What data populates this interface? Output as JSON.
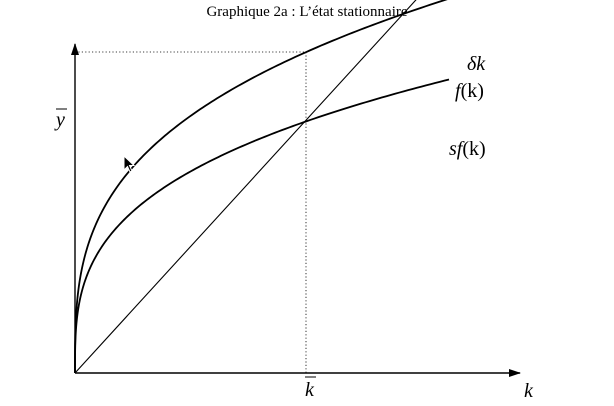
{
  "title": "Graphique 2a : L’état stationnaire",
  "chart_data": {
    "type": "line",
    "title": "Graphique 2a : L’état stationnaire",
    "xlabel": "k",
    "ylabel": "",
    "xlim": [
      0,
      10
    ],
    "ylim": [
      0,
      10
    ],
    "grid": false,
    "axis_marks": {
      "x_mark_label": "k",
      "y_mark_label": "y"
    },
    "steady_state": {
      "k": 5.25,
      "y": 10.0
    },
    "series": [
      {
        "name": "f(k)",
        "label_main": "f",
        "label_args": "(k)",
        "formula": "y = a * k^0.32",
        "params": {
          "a": 5.88,
          "exponent": 0.32
        }
      },
      {
        "name": "sf(k)",
        "label_main": "sf",
        "label_args": "(k)",
        "formula": "y = a * k^0.32",
        "params": {
          "a": 4.61,
          "exponent": 0.32
        }
      },
      {
        "name": "δk",
        "label_main": "δk",
        "label_args": "",
        "formula": "y = b * k",
        "params": {
          "b": 1.5
        }
      }
    ]
  }
}
